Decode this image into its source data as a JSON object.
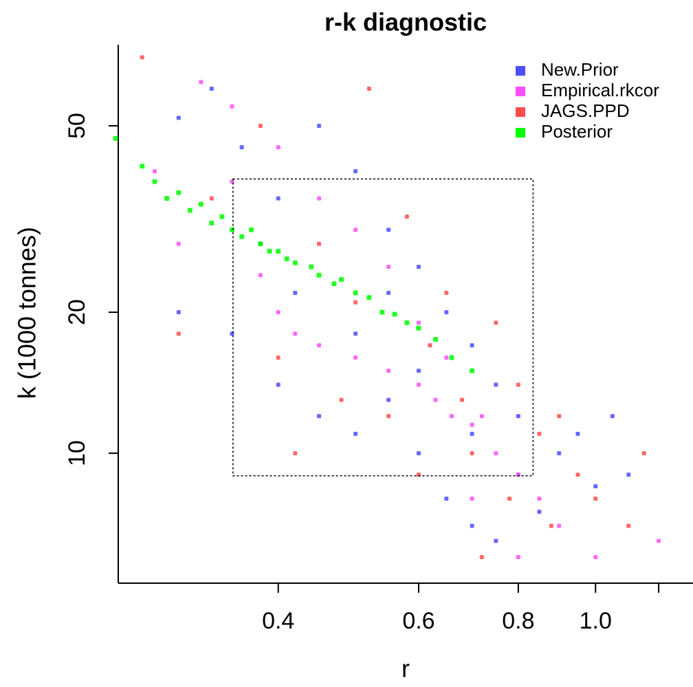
{
  "chart_data": {
    "type": "scatter",
    "title": "r-k diagnostic",
    "x_label": "r",
    "y_label": "k (1000 tonnes)",
    "log_x": true,
    "log_y": true,
    "xlim": [
      0.252,
      1.325
    ],
    "ylim": [
      5.28,
      74.5
    ],
    "xticks": [
      0.4,
      0.6,
      0.8,
      {
        "value": 1.0,
        "label": "1.0"
      },
      {
        "value": 1.2,
        "label": null
      }
    ],
    "yticks": [
      10,
      20,
      50
    ],
    "legend": "top-right",
    "box": {
      "x": [
        0.351,
        0.835
      ],
      "y": [
        8.95,
        38.5
      ]
    },
    "series": [
      {
        "name": "New.Prior",
        "color": "#4d4dff",
        "x": [
          0.3,
          0.33,
          0.36,
          0.4,
          0.45,
          0.5,
          0.55,
          0.6,
          0.65,
          0.7,
          0.75,
          0.8,
          0.9,
          1.0,
          1.1,
          0.3,
          0.35,
          0.4,
          0.45,
          0.5,
          0.55,
          0.6,
          0.65,
          0.7,
          0.75,
          0.85,
          0.42,
          0.5,
          0.6,
          0.7,
          0.8,
          0.95,
          1.05,
          0.38,
          0.55
        ],
        "values": [
          52,
          60,
          45,
          35,
          50,
          40,
          30,
          25,
          20,
          17,
          14,
          12,
          10,
          8.5,
          9,
          20,
          18,
          14,
          12,
          11,
          13,
          10,
          8,
          7,
          6.5,
          7.5,
          22,
          18,
          15,
          11,
          9,
          11,
          12,
          28,
          22
        ]
      },
      {
        "name": "Empirical.rkcor",
        "color": "#ff4dff",
        "x": [
          0.28,
          0.3,
          0.32,
          0.35,
          0.38,
          0.4,
          0.42,
          0.45,
          0.5,
          0.55,
          0.6,
          0.63,
          0.66,
          0.7,
          0.72,
          0.75,
          0.8,
          0.85,
          0.9,
          1.0,
          1.2,
          0.5,
          0.55,
          0.6,
          0.65,
          0.45,
          0.7,
          0.8,
          0.4,
          0.35
        ],
        "values": [
          40,
          28,
          62,
          38,
          24,
          20,
          18,
          17,
          16,
          15,
          14,
          13,
          12,
          11.5,
          12,
          10,
          9,
          8,
          7,
          6,
          6.5,
          30,
          25,
          19,
          16,
          35,
          8,
          6,
          45,
          55
        ]
      },
      {
        "name": "JAGS.PPD",
        "color": "#ff4d4d",
        "x": [
          0.27,
          0.3,
          0.33,
          0.38,
          0.4,
          0.45,
          0.5,
          0.55,
          0.58,
          0.6,
          0.62,
          0.65,
          0.68,
          0.7,
          0.75,
          0.78,
          0.8,
          0.85,
          0.9,
          0.95,
          1.0,
          1.1,
          1.15,
          0.52,
          0.48,
          0.42,
          0.72,
          0.88
        ],
        "values": [
          70,
          18,
          35,
          50,
          16,
          28,
          21,
          12,
          32,
          9,
          17,
          22,
          13,
          10,
          19,
          8,
          14,
          11,
          12,
          9,
          8,
          7,
          10,
          60,
          13,
          10,
          6,
          7
        ]
      },
      {
        "name": "Posterior",
        "color": "#00ff00",
        "x": [
          0.25,
          0.27,
          0.28,
          0.29,
          0.3,
          0.31,
          0.32,
          0.33,
          0.34,
          0.35,
          0.36,
          0.37,
          0.38,
          0.39,
          0.4,
          0.41,
          0.42,
          0.44,
          0.45,
          0.47,
          0.48,
          0.5,
          0.52,
          0.54,
          0.56,
          0.58,
          0.6,
          0.63,
          0.66,
          0.7
        ],
        "values": [
          47,
          41,
          38,
          35,
          36,
          33,
          34,
          31,
          32,
          30,
          29,
          30,
          28,
          27,
          27,
          26,
          25.5,
          25,
          24,
          23,
          23.5,
          22,
          21.5,
          20,
          19.8,
          19,
          18.5,
          17.5,
          16,
          15
        ]
      }
    ]
  }
}
